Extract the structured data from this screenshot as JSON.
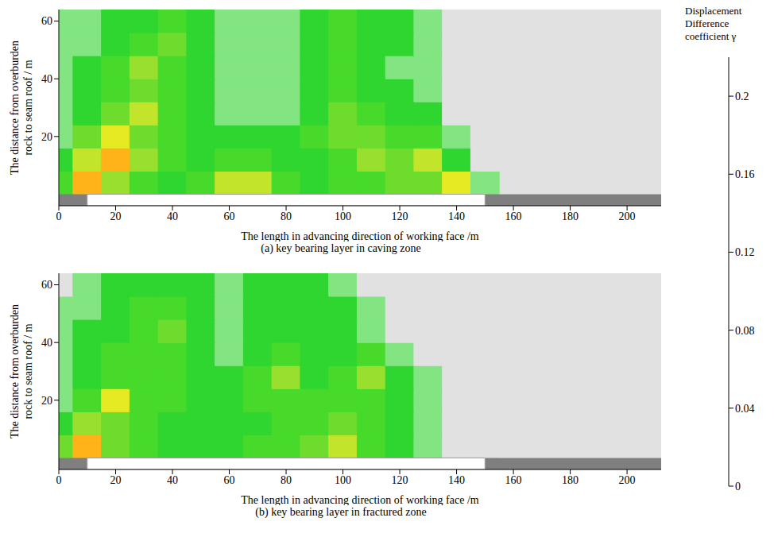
{
  "chart_data": [
    {
      "type": "heatmap",
      "title": "(a) key bearing layer in caving zone",
      "x_label": "The length in advancing direction of working face /m",
      "y_label": "The distance from overburden rock to seam roof / m",
      "x": [
        0,
        10,
        20,
        30,
        40,
        50,
        60,
        70,
        80,
        90,
        100,
        110,
        120,
        130,
        140,
        150
      ],
      "y": [
        4,
        12,
        20,
        28,
        36,
        44,
        52,
        60
      ],
      "cells": [
        [
          0.06,
          0.21,
          0.1,
          0.06,
          0.05,
          0.06,
          0.13,
          0.13,
          0.06,
          0.05,
          0.06,
          0.07,
          0.08,
          0.09,
          0.15,
          0.02
        ],
        [
          0.04,
          0.12,
          0.21,
          0.1,
          0.06,
          0.05,
          0.06,
          0.06,
          0.05,
          0.05,
          0.07,
          0.1,
          0.08,
          0.12,
          0.05,
          0.01
        ],
        [
          0.03,
          0.08,
          0.14,
          0.09,
          0.06,
          0.05,
          0.04,
          0.04,
          0.04,
          0.06,
          0.08,
          0.09,
          0.07,
          0.06,
          0.02,
          0
        ],
        [
          0.03,
          0.05,
          0.08,
          0.12,
          0.07,
          0.05,
          0.03,
          0.03,
          0.03,
          0.05,
          0.08,
          0.06,
          0.05,
          0.04,
          0.01,
          0
        ],
        [
          0.02,
          0.05,
          0.07,
          0.08,
          0.06,
          0.05,
          0.03,
          0.02,
          0.03,
          0.05,
          0.07,
          0.05,
          0.04,
          0.03,
          0.01,
          0
        ],
        [
          0.03,
          0.04,
          0.06,
          0.1,
          0.06,
          0.05,
          0.03,
          0.03,
          0.03,
          0.05,
          0.06,
          0.05,
          0.03,
          0.02,
          0,
          0
        ],
        [
          0.02,
          0.03,
          0.05,
          0.06,
          0.08,
          0.05,
          0.03,
          0.02,
          0.03,
          0.05,
          0.06,
          0.05,
          0.04,
          0.02,
          0,
          0
        ],
        [
          0.02,
          0.03,
          0.04,
          0.05,
          0.06,
          0.05,
          0.03,
          0.03,
          0.03,
          0.05,
          0.06,
          0.05,
          0.04,
          0.02,
          0,
          0
        ]
      ],
      "xlim": [
        0,
        212
      ],
      "xticks": [
        0,
        20,
        40,
        60,
        80,
        100,
        120,
        140,
        160,
        180,
        200
      ],
      "ylim": [
        -4,
        64
      ],
      "yticks": [
        20,
        40,
        60
      ],
      "coal_pillars": [
        [
          0,
          10
        ],
        [
          150,
          212
        ]
      ],
      "goaf": [
        10,
        150
      ]
    },
    {
      "type": "heatmap",
      "title": "(b) key bearing layer in fractured zone",
      "x_label": "The length in advancing direction of working face /m",
      "y_label": "The distance from overburden rock to seam roof / m",
      "x": [
        0,
        10,
        20,
        30,
        40,
        50,
        60,
        70,
        80,
        90,
        100,
        110,
        120,
        130,
        140,
        150
      ],
      "y": [
        4,
        12,
        20,
        28,
        36,
        44,
        52,
        60
      ],
      "cells": [
        [
          0.08,
          0.21,
          0.08,
          0.06,
          0.05,
          0.05,
          0.05,
          0.06,
          0.07,
          0.09,
          0.13,
          0.07,
          0.04,
          0.02,
          0,
          0
        ],
        [
          0.05,
          0.1,
          0.09,
          0.06,
          0.05,
          0.05,
          0.05,
          0.05,
          0.06,
          0.07,
          0.08,
          0.06,
          0.04,
          0.02,
          0,
          0
        ],
        [
          0.03,
          0.07,
          0.14,
          0.07,
          0.06,
          0.05,
          0.05,
          0.06,
          0.07,
          0.06,
          0.06,
          0.07,
          0.05,
          0.02,
          0,
          0
        ],
        [
          0.03,
          0.05,
          0.06,
          0.06,
          0.06,
          0.05,
          0.04,
          0.06,
          0.1,
          0.05,
          0.06,
          0.1,
          0.05,
          0.02,
          0,
          0
        ],
        [
          0.02,
          0.04,
          0.06,
          0.06,
          0.06,
          0.05,
          0.03,
          0.05,
          0.07,
          0.05,
          0.05,
          0.06,
          0.03,
          0.01,
          0,
          0
        ],
        [
          0.03,
          0.04,
          0.05,
          0.06,
          0.08,
          0.05,
          0.03,
          0.04,
          0.05,
          0.05,
          0.04,
          0.03,
          0.01,
          0,
          0,
          0
        ],
        [
          0.02,
          0.03,
          0.05,
          0.06,
          0.07,
          0.04,
          0.03,
          0.04,
          0.05,
          0.05,
          0.04,
          0.02,
          0,
          0,
          0,
          0
        ],
        [
          0.01,
          0.03,
          0.04,
          0.05,
          0.05,
          0.04,
          0.03,
          0.04,
          0.05,
          0.04,
          0.03,
          0.01,
          0,
          0,
          0,
          0
        ]
      ],
      "xlim": [
        0,
        212
      ],
      "xticks": [
        0,
        20,
        40,
        60,
        80,
        100,
        120,
        140,
        160,
        180,
        200
      ],
      "ylim": [
        -4,
        64
      ],
      "yticks": [
        20,
        40,
        60
      ],
      "coal_pillars": [
        [
          0,
          10
        ],
        [
          150,
          212
        ]
      ],
      "goaf": [
        10,
        150
      ]
    }
  ],
  "color_bar": {
    "label": "Displacement Difference coefficient γ",
    "levels": [
      0,
      0.02,
      0.04,
      0.06,
      0.08,
      0.1,
      0.12,
      0.14,
      0.16,
      0.18,
      0.2,
      0.22
    ],
    "colors": [
      "#e1e1e1",
      "#82e582",
      "#2fd62f",
      "#47da2a",
      "#6edc2c",
      "#98df2e",
      "#c2e42a",
      "#e5ea22",
      "#fff000",
      "#ffd11a",
      "#ffb319"
    ],
    "range": [
      0,
      0.22
    ],
    "ticks": [
      0,
      0.04,
      0.08,
      0.12,
      0.16,
      0.2
    ]
  }
}
